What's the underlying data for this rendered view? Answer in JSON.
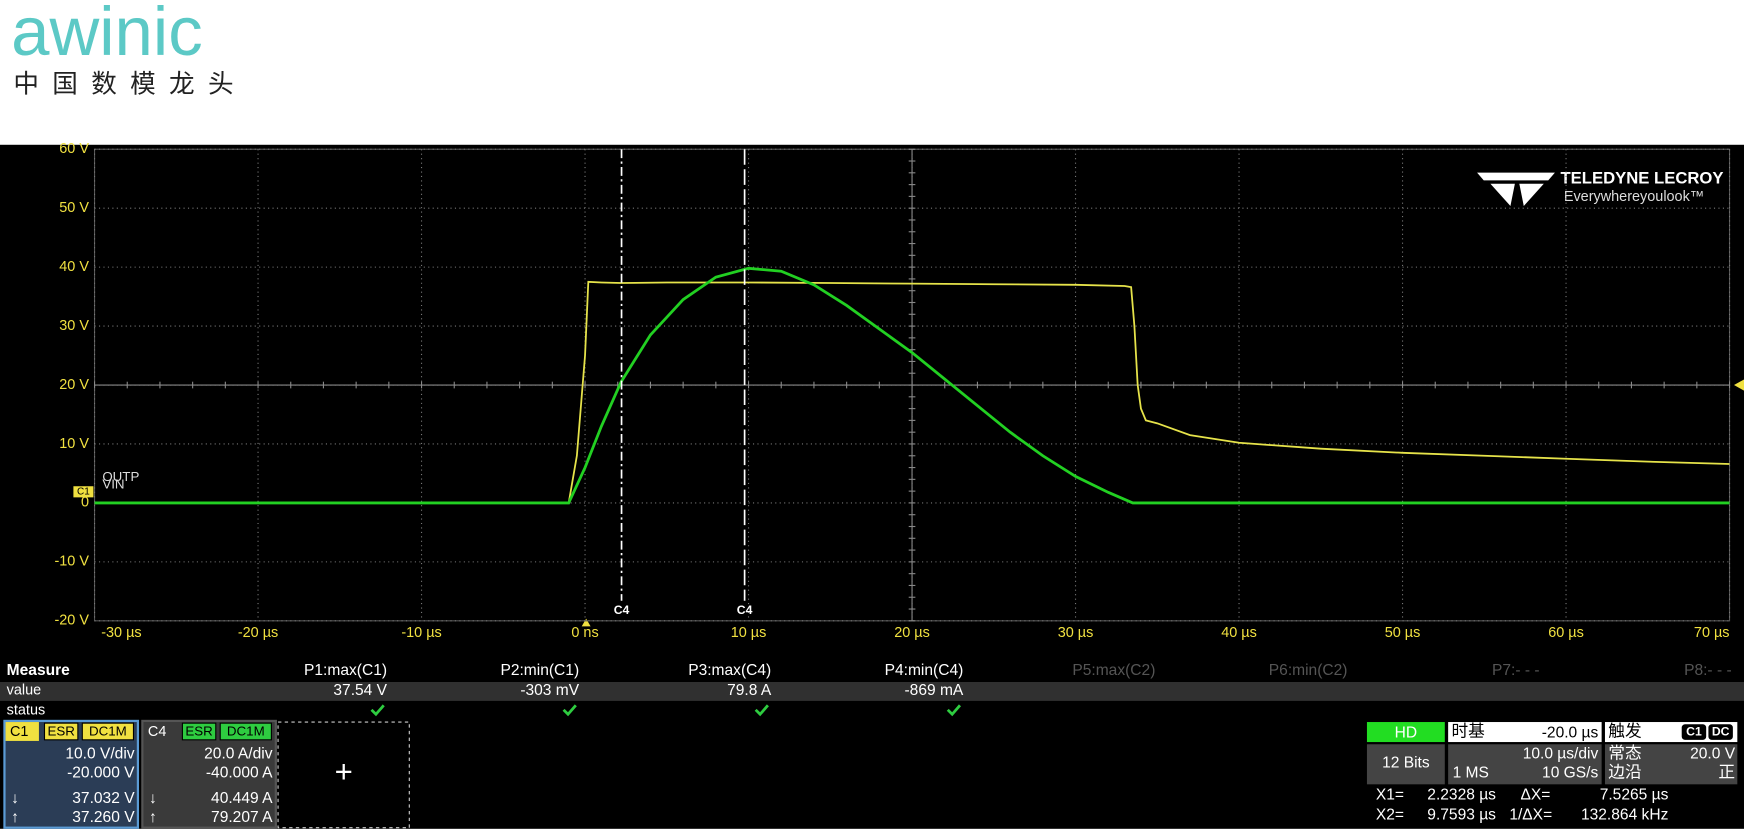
{
  "logo": {
    "brand": "awinic",
    "tagline": "中国数模龙头"
  },
  "vendor": {
    "name": "TELEDYNE LECROY",
    "slogan": "Everywhereyoulook™"
  },
  "chart_data": {
    "type": "line",
    "grid": true,
    "xlim": [
      -30,
      70
    ],
    "ylim": [
      -20,
      60
    ],
    "xticks": [
      {
        "value": -30,
        "label": "-30 µs"
      },
      {
        "value": -20,
        "label": "-20 µs"
      },
      {
        "value": -10,
        "label": "-10 µs"
      },
      {
        "value": 0,
        "label": "0 ns"
      },
      {
        "value": 10,
        "label": "10 µs"
      },
      {
        "value": 20,
        "label": "20 µs"
      },
      {
        "value": 30,
        "label": "30 µs"
      },
      {
        "value": 40,
        "label": "40 µs"
      },
      {
        "value": 50,
        "label": "50 µs"
      },
      {
        "value": 60,
        "label": "60 µs"
      },
      {
        "value": 70,
        "label": "70 µs"
      }
    ],
    "yticks": [
      {
        "value": 60,
        "label": "60 V"
      },
      {
        "value": 50,
        "label": "50 V"
      },
      {
        "value": 40,
        "label": "40 V"
      },
      {
        "value": 30,
        "label": "30 V"
      },
      {
        "value": 20,
        "label": "20 V"
      },
      {
        "value": 10,
        "label": "10 V"
      },
      {
        "value": 0,
        "label": "0"
      },
      {
        "value": -10,
        "label": "-10 V"
      },
      {
        "value": -20,
        "label": "-20 V"
      }
    ],
    "channel_marker": "C1",
    "series": [
      {
        "name": "VIN",
        "color": "#e6e34a",
        "x": [
          -30,
          -1,
          -0.5,
          0,
          0.2,
          1,
          2.2,
          5,
          10,
          15,
          20,
          25,
          30,
          33,
          33.4,
          33.6,
          33.8,
          34,
          34.3,
          35,
          37,
          40,
          45,
          50,
          55,
          60,
          65,
          70
        ],
        "values": [
          0,
          0,
          8,
          25,
          37.5,
          37.4,
          37.3,
          37.4,
          37.4,
          37.3,
          37.2,
          37.1,
          37,
          36.8,
          36.6,
          30,
          20,
          16,
          14,
          13.5,
          11.5,
          10.2,
          9.2,
          8.5,
          8,
          7.5,
          7,
          6.6
        ]
      },
      {
        "name": "OUTP",
        "color": "#22d022",
        "x": [
          -30,
          -1,
          0,
          1,
          2.2,
          4,
          6,
          8,
          10,
          12,
          14,
          16,
          18,
          20,
          22,
          24,
          26,
          28,
          30,
          32,
          33.5,
          40,
          50,
          60,
          70
        ],
        "values": [
          0,
          0,
          6,
          13,
          20.5,
          28.5,
          34.5,
          38.3,
          39.8,
          39.3,
          37,
          33.5,
          29.5,
          25.5,
          21,
          16.5,
          12,
          8,
          4.5,
          1.8,
          0,
          0,
          0,
          0,
          0
        ]
      }
    ],
    "cursors": [
      {
        "label": "C4",
        "x": 2.2328
      },
      {
        "label": "C4",
        "x": 9.7593
      }
    ]
  },
  "measure": {
    "title": "Measure",
    "row_labels": [
      "value",
      "status"
    ],
    "params": [
      {
        "name": "P1:max(C1)",
        "value": "37.54 V"
      },
      {
        "name": "P2:min(C1)",
        "value": "-303 mV"
      },
      {
        "name": "P3:max(C4)",
        "value": "79.8 A"
      },
      {
        "name": "P4:min(C4)",
        "value": "-869 mA"
      }
    ],
    "inactive": [
      "P5:max(C2)",
      "P6:min(C2)",
      "P7:- - -",
      "P8:- - -"
    ]
  },
  "channels": [
    {
      "id": "C1",
      "color": "#f0e040",
      "tags": [
        "ESR",
        "DC1M"
      ],
      "scale": "10.0 V/div",
      "offset": "-20.000 V",
      "readouts": [
        {
          "marker": "↓",
          "value": "37.032 V"
        },
        {
          "marker": "↑",
          "value": "37.260 V"
        }
      ]
    },
    {
      "id": "C4",
      "color": "#2ecc40",
      "tags": [
        "ESR",
        "DC1M"
      ],
      "scale": "20.0 A/div",
      "offset": "-40.000 A",
      "readouts": [
        {
          "marker": "↓",
          "value": "40.449 A"
        },
        {
          "marker": "↑",
          "value": "79.207 A"
        }
      ]
    }
  ],
  "acquisition": {
    "badge": "HD",
    "bits": "12 Bits"
  },
  "timebase": {
    "label": "时基",
    "delay": "-20.0 µs",
    "scale": "10.0 µs/div",
    "memory": "1 MS",
    "rate": "10 GS/s"
  },
  "trigger": {
    "label": "触发",
    "channel": "C1",
    "coupling": "DC",
    "mode": "常态",
    "level": "20.0 V",
    "type": "边沿",
    "slope": "正"
  },
  "cursor_readout": {
    "x1_label": "X1=",
    "x1": "2.2328 µs",
    "dx_label": "ΔX=",
    "dx": "7.5265 µs",
    "x2_label": "X2=",
    "x2": "9.7593 µs",
    "inv_label": "1/ΔX=",
    "inv": "132.864 kHz"
  }
}
